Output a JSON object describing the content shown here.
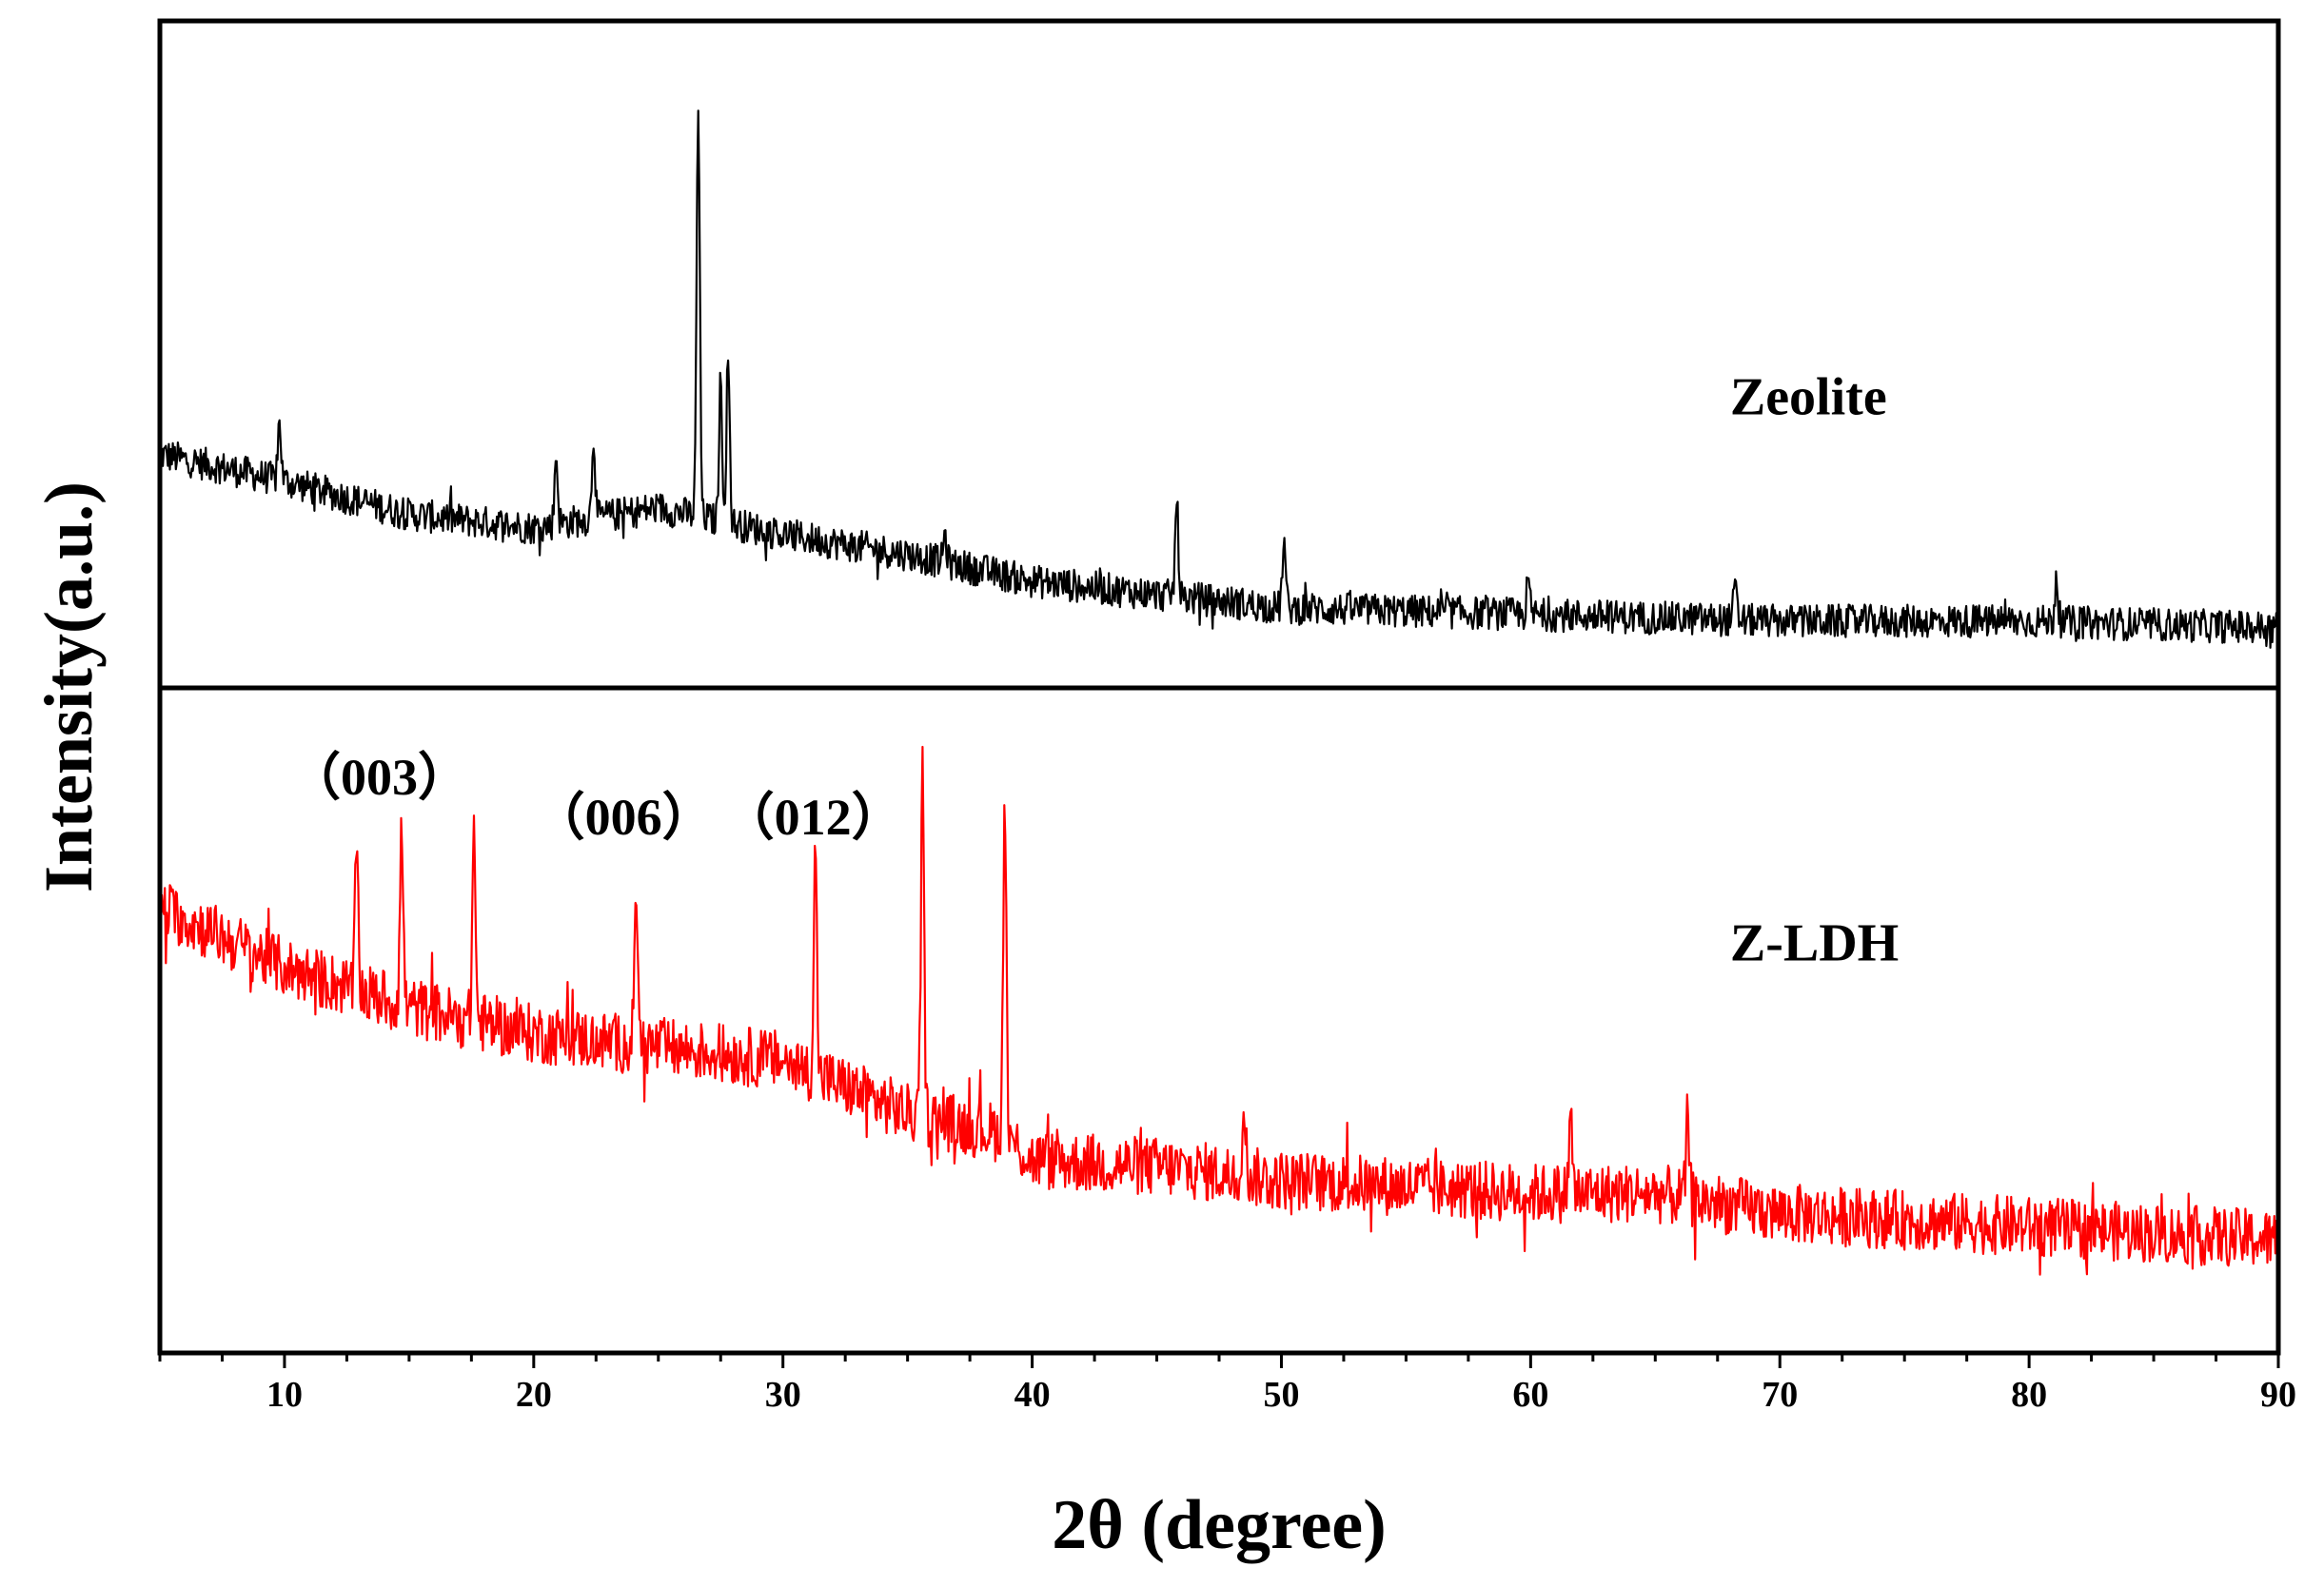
{
  "chart_data": {
    "type": "line",
    "layout": "two stacked panels sharing the x axis",
    "xlabel": "2θ (degree)",
    "ylabel": "Intensity(a.u.)",
    "xlim": [
      5,
      90
    ],
    "x_ticks": [
      10,
      20,
      30,
      40,
      50,
      60,
      70,
      80,
      90
    ],
    "x_tick_labels": [
      "10",
      "20",
      "30",
      "40",
      "50",
      "60",
      "70",
      "80",
      "90"
    ],
    "x_minor_tick_step": 2.5,
    "y_ticks": "none (arbitrary units)",
    "grid": false,
    "legend": "none; series names written inside each panel at the right",
    "series": [
      {
        "name": "Zeolite",
        "panel": "top",
        "color": "#000000",
        "ylim": [
          0,
          100
        ],
        "baseline": [
          [
            5,
            35
          ],
          [
            10,
            31
          ],
          [
            15,
            26
          ],
          [
            20,
            24
          ],
          [
            25,
            27
          ],
          [
            30,
            23
          ],
          [
            35,
            20
          ],
          [
            40,
            16
          ],
          [
            50,
            12
          ],
          [
            60,
            11
          ],
          [
            70,
            10
          ],
          [
            80,
            10
          ],
          [
            90,
            9
          ]
        ],
        "noise_amplitude": 2.5,
        "peaks": [
          {
            "x": 9.8,
            "y": 40
          },
          {
            "x": 20.9,
            "y": 35
          },
          {
            "x": 22.4,
            "y": 38
          },
          {
            "x": 26.6,
            "y": 87
          },
          {
            "x": 27.5,
            "y": 46
          },
          {
            "x": 27.8,
            "y": 50
          },
          {
            "x": 36.5,
            "y": 23
          },
          {
            "x": 45.8,
            "y": 28
          },
          {
            "x": 50.1,
            "y": 22
          },
          {
            "x": 59.9,
            "y": 16
          },
          {
            "x": 68.2,
            "y": 15
          },
          {
            "x": 81.1,
            "y": 17
          }
        ]
      },
      {
        "name": "Z-LDH",
        "panel": "bottom",
        "color": "#ff0000",
        "ylim": [
          0,
          100
        ],
        "baseline": [
          [
            5,
            67
          ],
          [
            10,
            58
          ],
          [
            15,
            52
          ],
          [
            20,
            48
          ],
          [
            25,
            46
          ],
          [
            30,
            44
          ],
          [
            35,
            36
          ],
          [
            38.8,
            33
          ],
          [
            40,
            29
          ],
          [
            45,
            28
          ],
          [
            50,
            26
          ],
          [
            55,
            25
          ],
          [
            60,
            24
          ],
          [
            65,
            24
          ],
          [
            70,
            21
          ],
          [
            75,
            20
          ],
          [
            80,
            19
          ],
          [
            85,
            18
          ],
          [
            90,
            17
          ]
        ],
        "noise_amplitude": 4.5,
        "peaks": [
          {
            "x": 12.9,
            "y": 77
          },
          {
            "x": 14.7,
            "y": 79
          },
          {
            "x": 17.6,
            "y": 79
          },
          {
            "x": 24.1,
            "y": 72
          },
          {
            "x": 31.3,
            "y": 75
          },
          {
            "x": 35.6,
            "y": 87
          },
          {
            "x": 38.9,
            "y": 83
          },
          {
            "x": 48.5,
            "y": 39
          },
          {
            "x": 61.6,
            "y": 36
          },
          {
            "x": 66.3,
            "y": 35
          }
        ]
      }
    ],
    "series_labels": [
      {
        "text": "Zeolite",
        "x": 68,
        "y": 41,
        "panel": "top"
      },
      {
        "text": "Z-LDH",
        "x": 68,
        "y": 59,
        "panel": "bottom"
      }
    ],
    "annotations": [
      {
        "text": "（003）",
        "x": 13.8,
        "y": 84,
        "panel": "bottom"
      },
      {
        "text": "（006）",
        "x": 23.6,
        "y": 78,
        "panel": "bottom"
      },
      {
        "text": "（012）",
        "x": 31.2,
        "y": 78,
        "panel": "bottom"
      }
    ]
  }
}
